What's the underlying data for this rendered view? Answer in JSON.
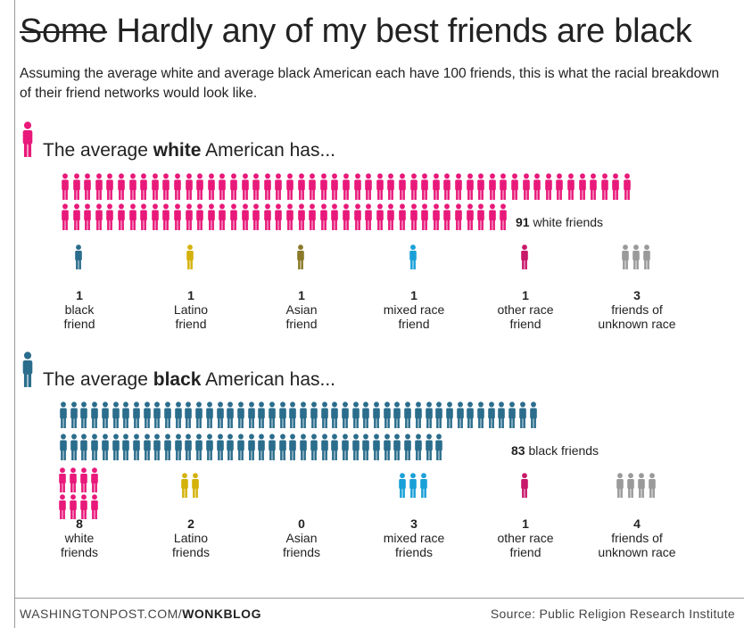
{
  "headline": {
    "struck_word": "Some",
    "rest": "Hardly any of my best friends are black"
  },
  "dek": "Assuming the average white and average black American each have 100 friends, this is what the racial breakdown of their friend networks would look like.",
  "colors": {
    "white": "#e8197a",
    "black": "#2b6d8c",
    "latino": "#d4b20c",
    "asian": "#8a7a2a",
    "mixed": "#1aa0d8",
    "other": "#c8186a",
    "unknown": "#9a9a9a"
  },
  "chart_data": [
    {
      "type": "pictogram",
      "title_prefix": "The average ",
      "title_bold": "white",
      "title_suffix": " American has...",
      "icon_color_key": "white",
      "primary": {
        "value": 91,
        "bold": "91",
        "label": "white friends",
        "color_key": "white"
      },
      "categories": [
        {
          "num": "1",
          "line1": "black",
          "line2": "friend",
          "value": 1,
          "color_key": "black"
        },
        {
          "num": "1",
          "line1": "Latino",
          "line2": "friend",
          "value": 1,
          "color_key": "latino"
        },
        {
          "num": "1",
          "line1": "Asian",
          "line2": "friend",
          "value": 1,
          "color_key": "asian"
        },
        {
          "num": "1",
          "line1": "mixed race",
          "line2": "friend",
          "value": 1,
          "color_key": "mixed"
        },
        {
          "num": "1",
          "line1": "other race",
          "line2": "friend",
          "value": 1,
          "color_key": "other"
        },
        {
          "num": "3",
          "line1": "friends of",
          "line2": "unknown race",
          "value": 3,
          "color_key": "unknown"
        }
      ]
    },
    {
      "type": "pictogram",
      "title_prefix": "The average ",
      "title_bold": "black",
      "title_suffix": " American has...",
      "icon_color_key": "black",
      "primary": {
        "value": 83,
        "bold": "83",
        "label": "black friends",
        "color_key": "black"
      },
      "categories": [
        {
          "num": "8",
          "line1": "white",
          "line2": "friends",
          "value": 8,
          "color_key": "white"
        },
        {
          "num": "2",
          "line1": "Latino",
          "line2": "friends",
          "value": 2,
          "color_key": "latino"
        },
        {
          "num": "0",
          "line1": "Asian",
          "line2": "friends",
          "value": 0,
          "color_key": "asian"
        },
        {
          "num": "3",
          "line1": "mixed race",
          "line2": "friends",
          "value": 3,
          "color_key": "mixed"
        },
        {
          "num": "1",
          "line1": "other race",
          "line2": "friend",
          "value": 1,
          "color_key": "other"
        },
        {
          "num": "4",
          "line1": "friends of",
          "line2": "unknown race",
          "value": 4,
          "color_key": "unknown"
        }
      ]
    }
  ],
  "footer": {
    "site": "WASHINGTONPOST.COM/",
    "blog": "WONKBLOG",
    "source": "Source: Public Religion Research Institute"
  }
}
